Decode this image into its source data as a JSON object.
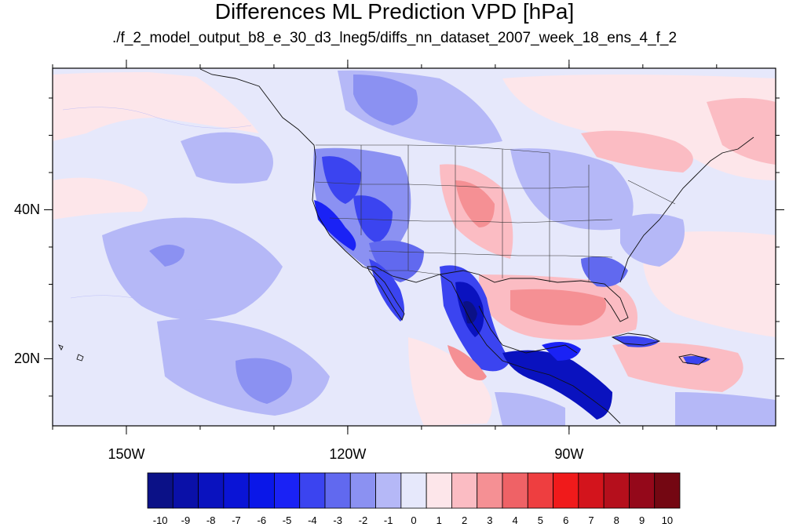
{
  "title": "Differences ML Prediction VPD [hPa]",
  "subtitle": "./f_2_model_output_b8_e_30_d3_lneg5/diffs_nn_dataset_2007_week_18_ens_4_f_2",
  "map": {
    "projection": "cylindrical-equidistant",
    "lon_range": [
      -160,
      -62
    ],
    "lat_range": [
      11,
      59
    ],
    "lon_ticks": [
      {
        "value": -150,
        "label": "150W"
      },
      {
        "value": -120,
        "label": "120W"
      },
      {
        "value": -90,
        "label": "90W"
      }
    ],
    "lat_ticks": [
      {
        "value": 40,
        "label": "40N"
      },
      {
        "value": 20,
        "label": "20N"
      }
    ],
    "background_color": "#e6e8fb"
  },
  "colorbar": {
    "labels": [
      "-10",
      "-9",
      "-8",
      "-7",
      "-6",
      "-5",
      "-4",
      "-3",
      "-2",
      "-1",
      "0",
      "1",
      "2",
      "3",
      "4",
      "5",
      "6",
      "7",
      "8",
      "9",
      "10"
    ],
    "colors": [
      "#0b1187",
      "#0a10a8",
      "#0a12bf",
      "#0a14d6",
      "#0a17e8",
      "#1a22f5",
      "#3b44f0",
      "#6169ef",
      "#8b91f2",
      "#b5b8f7",
      "#e6e8fb",
      "#fde6ea",
      "#fbbcc3",
      "#f59094",
      "#ef6266",
      "#ee3e40",
      "#f01a1b",
      "#d3141c",
      "#b50f1c",
      "#94081a",
      "#740712"
    ]
  }
}
